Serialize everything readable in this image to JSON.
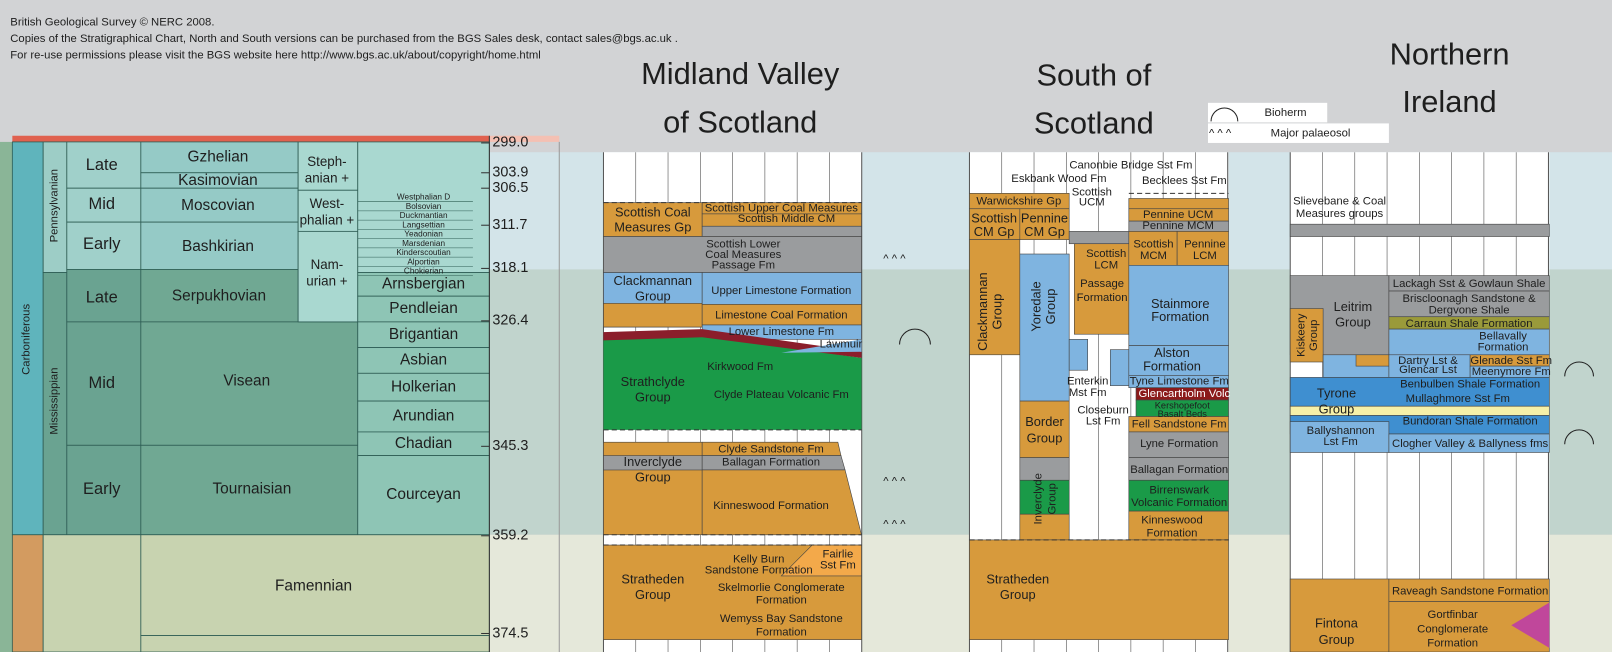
{
  "credits": [
    "British Geological Survey © NERC 2008.",
    "Copies of the Stratigraphical Chart, North and South versions can be purchased from the BGS Sales desk, contact sales@bgs.ac.uk .",
    "For re-use permissions please visit the BGS website here http://www.bgs.ac.uk/about/copyright/home.html"
  ],
  "legend": {
    "bioherm": "Bioherm",
    "palaeosol_symbol": "^ ^ ^",
    "palaeosol": "Major palaeosol"
  },
  "palaeosol_marks": [
    "^ ^ ^",
    "^ ^ ^",
    "^ ^ ^"
  ],
  "timescale": {
    "system": "Carboniferous",
    "subsystems": [
      "Pennsylvanian",
      "Mississippian"
    ],
    "series": [
      "Late",
      "Mid",
      "Early",
      "Late",
      "Mid",
      "Early"
    ],
    "stages": [
      "Gzhelian",
      "Kasimovian",
      "Moscovian",
      "Bashkirian",
      "Serpukhovian",
      "Visean",
      "Tournaisian",
      "Famennian"
    ],
    "regional_pennsylvanian": [
      [
        "Steph-",
        "anian +"
      ],
      [
        "West-",
        "phalian +"
      ],
      [
        "Nam-",
        "urian +"
      ]
    ],
    "regional_mississippian": [
      "Arnsbergian",
      "Pendleian",
      "Brigantian",
      "Asbian",
      "Holkerian",
      "Arundian",
      "Chadian",
      "Courceyan"
    ],
    "westphalian_substages": [
      "Westphalian D",
      "Bolsovian",
      "Duckmantian",
      "Langsettian",
      "Yeadonian",
      "Marsdenian",
      "Kinderscoutian",
      "Alportian",
      "Chokierian"
    ],
    "ages": [
      "299.0",
      "303.9",
      "306.5",
      "311.7",
      "318.1",
      "326.4",
      "345.3",
      "359.2",
      "374.5"
    ]
  },
  "midland_valley": {
    "title": [
      "Midland Valley",
      "of Scotland"
    ],
    "labels": [
      [
        "Scottish Coal",
        "Measures Gp"
      ],
      [
        "Scottish Upper Coal Measures"
      ],
      [
        "Scottish Middle CM"
      ],
      [
        "Scottish Lower",
        "Coal Measures",
        "Passage  Fm"
      ],
      [
        "Clackmannan",
        "Group"
      ],
      [
        "Upper Limestone Formation"
      ],
      [
        "Limestone Coal Formation"
      ],
      [
        "Lower Limestone Fm"
      ],
      [
        "Lawmuir"
      ],
      [
        "Kirkwood Fm"
      ],
      [
        "Strathclyde",
        "Group"
      ],
      [
        "Clyde Plateau Volcanic Fm"
      ],
      [
        "Clyde Sandstone Fm"
      ],
      [
        "Inverclyde",
        "Group"
      ],
      [
        "Ballagan Formation"
      ],
      [
        "Kinneswood Formation"
      ],
      [
        "Kelly Burn",
        "Sandstone Formation"
      ],
      [
        "Fairlie",
        "Sst Fm"
      ],
      [
        "Stratheden",
        "Group"
      ],
      [
        "Skelmorlie Conglomerate",
        "Formation"
      ],
      [
        "Wemyss Bay Sandstone",
        "Formation"
      ]
    ]
  },
  "south_of_scotland": {
    "title": [
      "South of",
      "Scotland"
    ],
    "labels": [
      [
        "Canonbie Bridge Sst Fm"
      ],
      [
        "Eskbank Wood Fm"
      ],
      [
        "Becklees Sst Fm"
      ],
      [
        "Scottish",
        "UCM"
      ],
      [
        "Warwickshire Gp"
      ],
      [
        "Pennine UCM"
      ],
      [
        "Pennine MCM"
      ],
      [
        "Scottish",
        "CM Gp"
      ],
      [
        "Pennine",
        "CM Gp"
      ],
      [
        "Scottish",
        "MCM"
      ],
      [
        "Pennine",
        "LCM"
      ],
      [
        "Scottish",
        "LCM"
      ],
      [
        "Passage",
        "Formation"
      ],
      [
        "Clackmannan",
        "Group"
      ],
      [
        "Yoredale",
        "Group"
      ],
      [
        "Stainmore",
        "Formation"
      ],
      [
        "Alston",
        "Formation"
      ],
      [
        "Tyne Limestone Fm"
      ],
      [
        "Glencartholm Volc"
      ],
      [
        "Kershopefoot",
        "Basalt Beds"
      ],
      [
        "Enterkin",
        "Mst Fm"
      ],
      [
        "Closeburn",
        "Lst Fm"
      ],
      [
        "Fell Sandstone Fm"
      ],
      [
        "Border",
        "Group"
      ],
      [
        "Lyne Formation"
      ],
      [
        "Ballagan Formation"
      ],
      [
        "Inverclyde",
        "Group"
      ],
      [
        "Birrenswark",
        "Volcanic Formation"
      ],
      [
        "Kinneswood",
        "Formation"
      ],
      [
        "Stratheden",
        "Group"
      ]
    ]
  },
  "northern_ireland": {
    "title": [
      "Northern",
      "Ireland"
    ],
    "labels": [
      [
        "Slievebane & Coal",
        "Measures groups"
      ],
      [
        "Lackagh Sst & Gowlaun Shale"
      ],
      [
        "Briscloonagh Sandstone &",
        "Dergvone Shale"
      ],
      [
        "Leitrim",
        "Group"
      ],
      [
        "Carraun Shale Formation"
      ],
      [
        "Kiskeery",
        "Group"
      ],
      [
        "Bellavally",
        "Formation"
      ],
      [
        "Dartry Lst &",
        "Glencar Lst"
      ],
      [
        "Glenade Sst Fm"
      ],
      [
        "Meenymore Fm"
      ],
      [
        "Tyrone",
        "Group"
      ],
      [
        "Benbulben Shale Formation"
      ],
      [
        "Mullaghmore Sst Fm"
      ],
      [
        "Ballyshannon",
        "Lst Fm"
      ],
      [
        "Bundoran Shale Formation"
      ],
      [
        "Clogher Valley & Ballyness fms"
      ],
      [
        "Raveagh Sandstone Formation"
      ],
      [
        "Fintona",
        "Group"
      ],
      [
        "Gortfinbar",
        "Conglomerate",
        "Formation"
      ]
    ]
  }
}
